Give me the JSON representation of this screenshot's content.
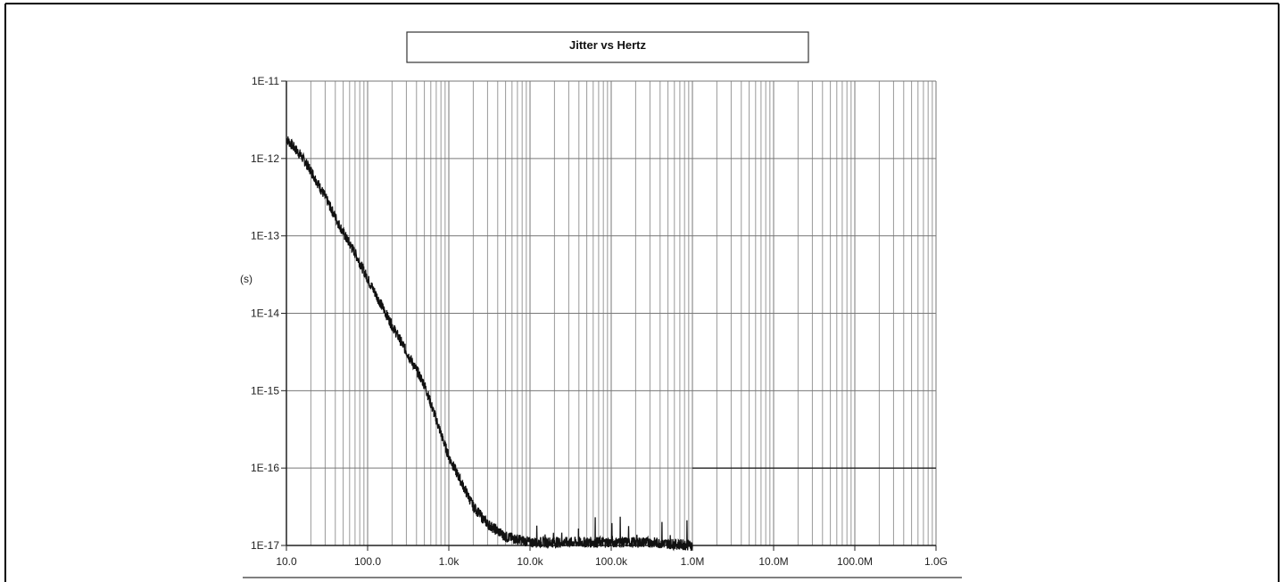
{
  "chart_data": {
    "type": "line",
    "title": "Jitter vs Hertz",
    "xlabel": "",
    "ylabel": "(s)",
    "x_scale": "log",
    "y_scale": "log",
    "xlim": [
      10,
      1000000000
    ],
    "ylim": [
      1e-17,
      1e-11
    ],
    "grid": true,
    "x_tick_values": [
      10,
      100,
      1000,
      10000,
      100000,
      1000000,
      10000000,
      100000000,
      1000000000
    ],
    "x_tick_labels": [
      "10.0",
      "100.0",
      "1.0k",
      "10.0k",
      "100.0k",
      "1.0M",
      "10.0M",
      "100.0M",
      "1.0G"
    ],
    "y_tick_values": [
      1e-11,
      1e-12,
      1e-13,
      1e-14,
      1e-15,
      1e-16,
      1e-17
    ],
    "y_tick_labels": [
      "1E-11",
      "1E-12",
      "1E-13",
      "1E-14",
      "1E-15",
      "1E-16",
      "1E-17"
    ],
    "series": [
      {
        "x": [
          10,
          15,
          20,
          30,
          50,
          70,
          100,
          200,
          500,
          1000,
          2000,
          3000,
          5000,
          7000,
          10000,
          30000,
          100000,
          300000,
          1000000
        ],
        "y": [
          1.8e-12,
          1.1e-12,
          7e-13,
          3.2e-13,
          1.1e-13,
          6e-14,
          2.8e-14,
          7e-15,
          1.2e-15,
          1.4e-16,
          3.2e-17,
          1.9e-17,
          1.3e-17,
          1.2e-17,
          1.1e-17,
          1.1e-17,
          1.1e-17,
          1.1e-17,
          1e-17
        ],
        "color": "#111111"
      }
    ],
    "reference_line": {
      "y": 1e-16,
      "x_start": 1000000,
      "x_end": 1000000000
    }
  }
}
